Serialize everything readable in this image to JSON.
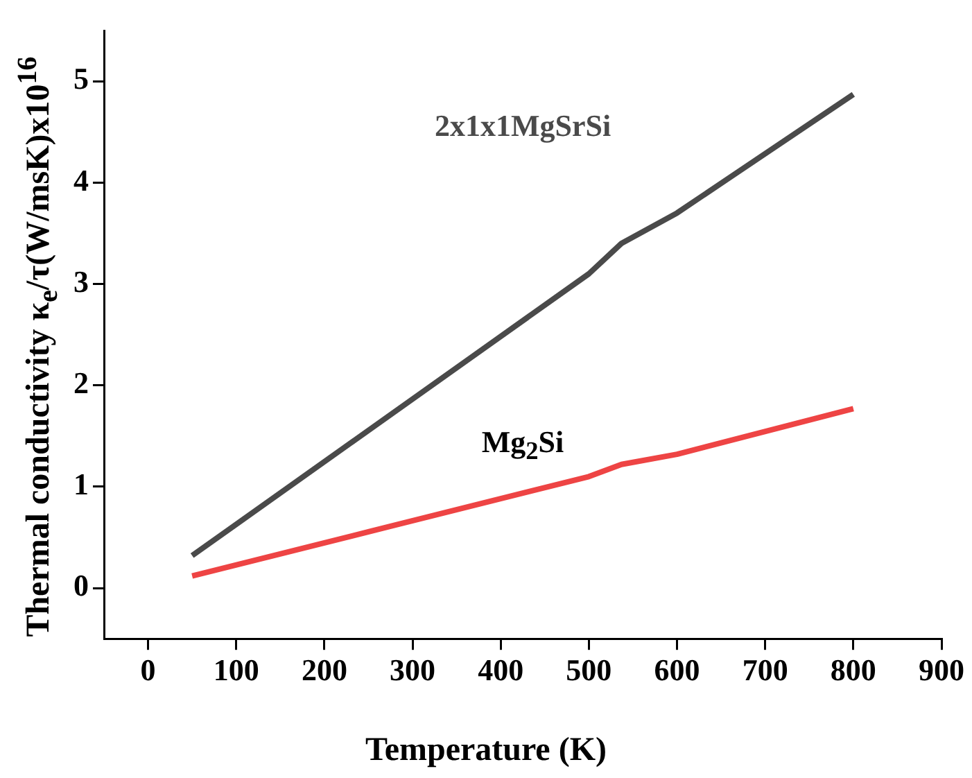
{
  "chart_data": {
    "type": "line",
    "xlabel": "Temperature (K)",
    "ylabel": "Thermal conductivity κ$_{e}$/τ(W/msK)x10$^{16}$",
    "xlim": [
      -50,
      900
    ],
    "xticks": [
      0,
      100,
      200,
      300,
      400,
      500,
      600,
      700,
      800,
      900
    ],
    "ylim": [
      -0.5,
      5.5
    ],
    "yticks": [
      0,
      1,
      2,
      3,
      4,
      5
    ],
    "grid": false,
    "legend": false,
    "marker": "none",
    "line_style": "solid",
    "series": [
      {
        "name": "2x1x1MgSrSi",
        "color": "#4a4a4a",
        "x": [
          50,
          500,
          537,
          600,
          800
        ],
        "values": [
          0.32,
          3.1,
          3.4,
          3.7,
          4.87
        ]
      },
      {
        "name": "Mg$_{2}$Si",
        "color": "#ee4444",
        "x": [
          50,
          500,
          537,
          600,
          800
        ],
        "values": [
          0.12,
          1.1,
          1.22,
          1.32,
          1.77
        ]
      }
    ]
  }
}
